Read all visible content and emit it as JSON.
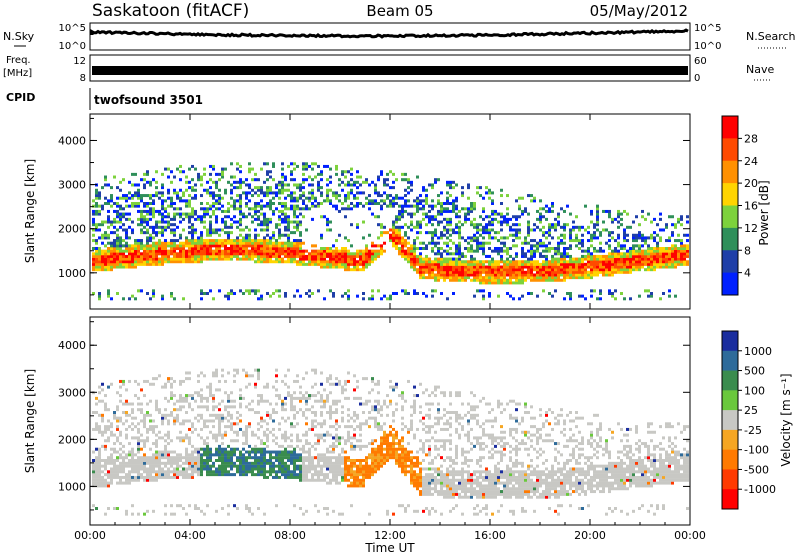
{
  "header": {
    "station": "Saskatoon (fitACF)",
    "beam": "Beam 05",
    "date": "05/May/2012"
  },
  "top_panels": {
    "nsky_label": "N.Sky",
    "nsky_ticks": [
      "10^5",
      "10^0"
    ],
    "nsearch_label": "N.Search",
    "nsearch_ticks": [
      "10^5",
      "10^0"
    ],
    "freq_label_1": "Freq.",
    "freq_label_2": "[MHz]",
    "freq_ticks": [
      "12",
      "8"
    ],
    "nave_label": "Nave",
    "nave_ticks": [
      "60",
      "0"
    ],
    "cpid_label": "CPID",
    "cpid_value": "twofsound 3501"
  },
  "chart_data": [
    {
      "type": "heatmap",
      "quantity": "Power",
      "ylabel": "Slant Range [km]",
      "ylim": [
        180,
        4600
      ],
      "yticks": [
        "1000",
        "2000",
        "3000",
        "4000"
      ],
      "colorbar_label": "Power [dB]",
      "colorbar_ticks": [
        "28",
        "24",
        "20",
        "16",
        "12",
        "8",
        "4"
      ],
      "colorbar_colors": [
        "#ff0000",
        "#ff4a00",
        "#ff9000",
        "#ffd400",
        "#7dd23c",
        "#2f8f5a",
        "#1f3fa8",
        "#0020ff"
      ]
    },
    {
      "type": "heatmap",
      "quantity": "Velocity",
      "ylabel": "Slant Range [km]",
      "ylim": [
        180,
        4600
      ],
      "yticks": [
        "1000",
        "2000",
        "3000",
        "4000"
      ],
      "colorbar_label": "Velocity [m s⁻¹]",
      "colorbar_ticks": [
        "1000",
        "500",
        "100",
        "25",
        "-25",
        "-100",
        "-500",
        "-1000"
      ],
      "colorbar_colors": [
        "#1a2d9e",
        "#2e6b9a",
        "#3a8c4e",
        "#6ac83c",
        "#c8c8c4",
        "#f5a623",
        "#ff7a00",
        "#ff3a00",
        "#ff0000"
      ]
    }
  ],
  "time_axis": {
    "xlabel": "Time UT",
    "ticks": [
      "00:00",
      "04:00",
      "08:00",
      "12:00",
      "16:00",
      "20:00",
      "00:00"
    ]
  }
}
